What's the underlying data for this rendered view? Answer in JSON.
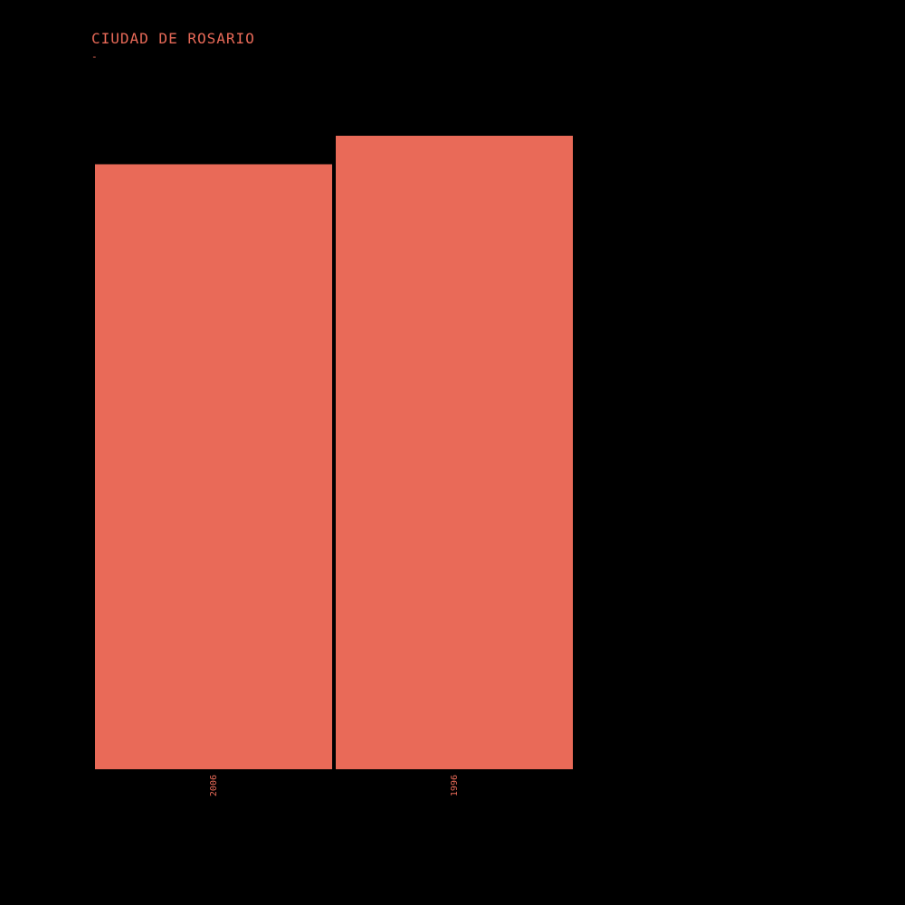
{
  "theme": {
    "background": "#000000",
    "accent": "#e96a58"
  },
  "chart_data": {
    "type": "bar",
    "title": "CIUDAD DE ROSARIO",
    "subtitle": "-",
    "categories": [
      "2006",
      "1996"
    ],
    "values": [
      0.955,
      1.0
    ],
    "ylim": [
      0,
      1
    ],
    "xlabel": "",
    "ylabel": "",
    "grid": false,
    "legend": "none"
  }
}
